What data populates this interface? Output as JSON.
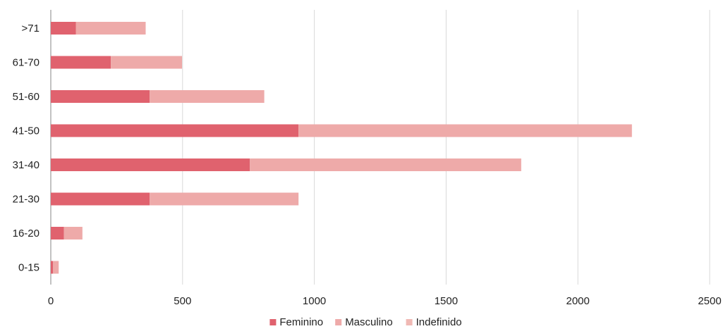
{
  "chart_data": {
    "type": "bar",
    "orientation": "horizontal",
    "stacked": true,
    "categories": [
      ">71",
      "61-70",
      "51-60",
      "41-50",
      "31-40",
      "21-30",
      "16-20",
      "0-15"
    ],
    "series": [
      {
        "name": "Feminino",
        "color": "#e0626e",
        "values": [
          95,
          228,
          375,
          940,
          755,
          375,
          50,
          8
        ]
      },
      {
        "name": "Masculino",
        "color": "#eeaaa9",
        "values": [
          265,
          270,
          435,
          1265,
          1030,
          565,
          70,
          22
        ]
      },
      {
        "name": "Indefinido",
        "color": "#f0b9b4",
        "values": [
          0,
          0,
          0,
          0,
          0,
          0,
          0,
          0
        ]
      }
    ],
    "xlim": [
      0,
      2500
    ],
    "xticks": [
      "0",
      "500",
      "1000",
      "1500",
      "2000",
      "2500"
    ],
    "title": "",
    "xlabel": "",
    "ylabel": "",
    "grid": true,
    "legend": "bottom-center"
  }
}
